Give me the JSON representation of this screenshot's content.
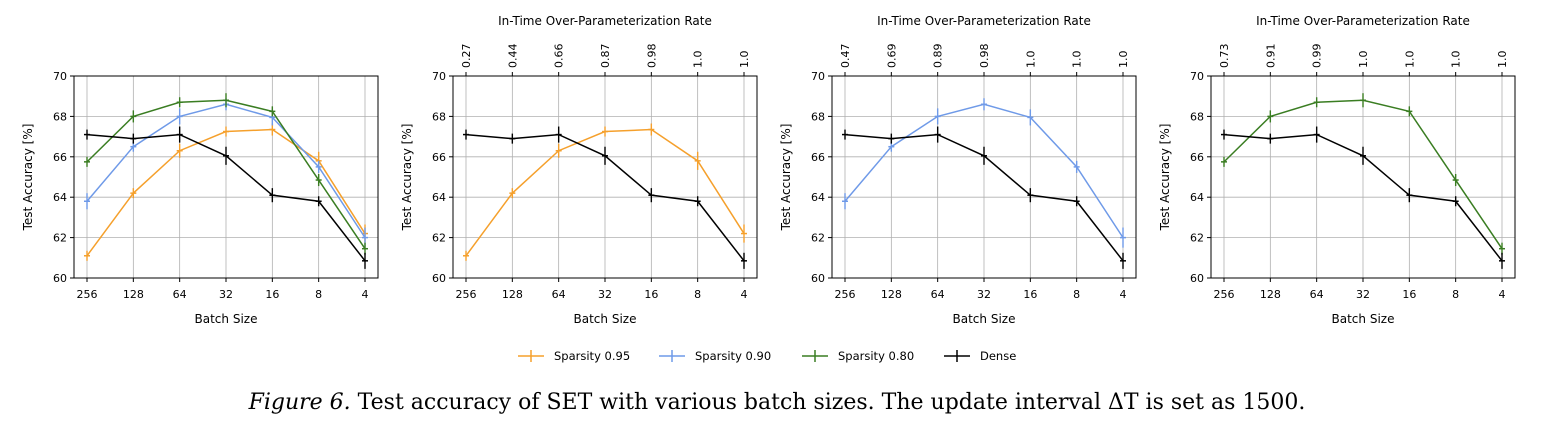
{
  "caption": {
    "label": "Figure 6.",
    "text": "Test accuracy of SET with various batch sizes. The update interval ΔT is set as 1500."
  },
  "colors": {
    "sparsity_095": "#f5a02c",
    "sparsity_090": "#6f9ae8",
    "sparsity_080": "#3a7d22",
    "dense": "#000000",
    "grid": "#b0b0b0"
  },
  "legend": {
    "position": "bottom-center",
    "entries": [
      "Sparsity 0.95",
      "Sparsity 0.90",
      "Sparsity 0.80",
      "Dense"
    ]
  },
  "chart_data": [
    {
      "type": "line",
      "xlabel": "Batch Size",
      "ylabel": "Test Accuracy [%]",
      "top_xlabel": "",
      "categories": [
        "256",
        "128",
        "64",
        "32",
        "16",
        "8",
        "4"
      ],
      "top_ticks": [],
      "ylim": [
        60,
        70
      ],
      "yticks": [
        60,
        62,
        64,
        66,
        68,
        70
      ],
      "grid": true,
      "series": [
        {
          "name": "Sparsity 0.95",
          "color": "#f5a02c",
          "values": [
            61.1,
            64.2,
            66.3,
            67.25,
            67.35,
            65.8,
            62.2
          ],
          "err": [
            0.1,
            0.1,
            0.2,
            0.1,
            0.15,
            0.3,
            0.3
          ]
        },
        {
          "name": "Sparsity 0.90",
          "color": "#6f9ae8",
          "values": [
            63.8,
            66.5,
            68.0,
            68.6,
            67.95,
            65.5,
            62.0
          ],
          "err": [
            0.25,
            0.1,
            0.25,
            0.15,
            0.25,
            0.15,
            0.35
          ]
        },
        {
          "name": "Sparsity 0.80",
          "color": "#3a7d22",
          "values": [
            65.75,
            68.0,
            68.7,
            68.8,
            68.25,
            64.85,
            61.45
          ],
          "err": [
            0.1,
            0.15,
            0.1,
            0.2,
            0.1,
            0.15,
            0.15
          ]
        },
        {
          "name": "Dense",
          "color": "#000000",
          "values": [
            67.1,
            66.9,
            67.1,
            66.05,
            64.1,
            63.8,
            60.85
          ],
          "err": [
            0.1,
            0.1,
            0.25,
            0.3,
            0.2,
            0.1,
            0.25
          ]
        }
      ]
    },
    {
      "type": "line",
      "xlabel": "Batch Size",
      "ylabel": "Test Accuracy [%]",
      "top_xlabel": "In-Time Over-Parameterization Rate",
      "categories": [
        "256",
        "128",
        "64",
        "32",
        "16",
        "8",
        "4"
      ],
      "top_ticks": [
        "0.27",
        "0.44",
        "0.66",
        "0.87",
        "0.98",
        "1.0",
        "1.0"
      ],
      "ylim": [
        60,
        70
      ],
      "yticks": [
        60,
        62,
        64,
        66,
        68,
        70
      ],
      "grid": true,
      "series": [
        {
          "name": "Sparsity 0.95",
          "color": "#f5a02c",
          "values": [
            61.1,
            64.2,
            66.3,
            67.25,
            67.35,
            65.8,
            62.2
          ],
          "err": [
            0.1,
            0.1,
            0.2,
            0.1,
            0.15,
            0.3,
            0.3
          ]
        },
        {
          "name": "Dense",
          "color": "#000000",
          "values": [
            67.1,
            66.9,
            67.1,
            66.05,
            64.1,
            63.8,
            60.85
          ],
          "err": [
            0.1,
            0.1,
            0.25,
            0.3,
            0.2,
            0.1,
            0.25
          ]
        }
      ]
    },
    {
      "type": "line",
      "xlabel": "Batch Size",
      "ylabel": "Test Accuracy [%]",
      "top_xlabel": "In-Time Over-Parameterization Rate",
      "categories": [
        "256",
        "128",
        "64",
        "32",
        "16",
        "8",
        "4"
      ],
      "top_ticks": [
        "0.47",
        "0.69",
        "0.89",
        "0.98",
        "1.0",
        "1.0",
        "1.0"
      ],
      "ylim": [
        60,
        70
      ],
      "yticks": [
        60,
        62,
        64,
        66,
        68,
        70
      ],
      "grid": true,
      "series": [
        {
          "name": "Sparsity 0.90",
          "color": "#6f9ae8",
          "values": [
            63.8,
            66.5,
            68.0,
            68.6,
            67.95,
            65.5,
            62.0
          ],
          "err": [
            0.25,
            0.1,
            0.25,
            0.15,
            0.25,
            0.15,
            0.35
          ]
        },
        {
          "name": "Dense",
          "color": "#000000",
          "values": [
            67.1,
            66.9,
            67.1,
            66.05,
            64.1,
            63.8,
            60.85
          ],
          "err": [
            0.1,
            0.1,
            0.25,
            0.3,
            0.2,
            0.1,
            0.25
          ]
        }
      ]
    },
    {
      "type": "line",
      "xlabel": "Batch Size",
      "ylabel": "Test Accuracy [%]",
      "top_xlabel": "In-Time Over-Parameterization Rate",
      "categories": [
        "256",
        "128",
        "64",
        "32",
        "16",
        "8",
        "4"
      ],
      "top_ticks": [
        "0.73",
        "0.91",
        "0.99",
        "1.0",
        "1.0",
        "1.0",
        "1.0"
      ],
      "ylim": [
        60,
        70
      ],
      "yticks": [
        60,
        62,
        64,
        66,
        68,
        70
      ],
      "grid": true,
      "series": [
        {
          "name": "Sparsity 0.80",
          "color": "#3a7d22",
          "values": [
            65.75,
            68.0,
            68.7,
            68.8,
            68.25,
            64.85,
            61.45
          ],
          "err": [
            0.1,
            0.15,
            0.1,
            0.2,
            0.1,
            0.15,
            0.15
          ]
        },
        {
          "name": "Dense",
          "color": "#000000",
          "values": [
            67.1,
            66.9,
            67.1,
            66.05,
            64.1,
            63.8,
            60.85
          ],
          "err": [
            0.1,
            0.1,
            0.25,
            0.3,
            0.2,
            0.1,
            0.25
          ]
        }
      ]
    }
  ]
}
